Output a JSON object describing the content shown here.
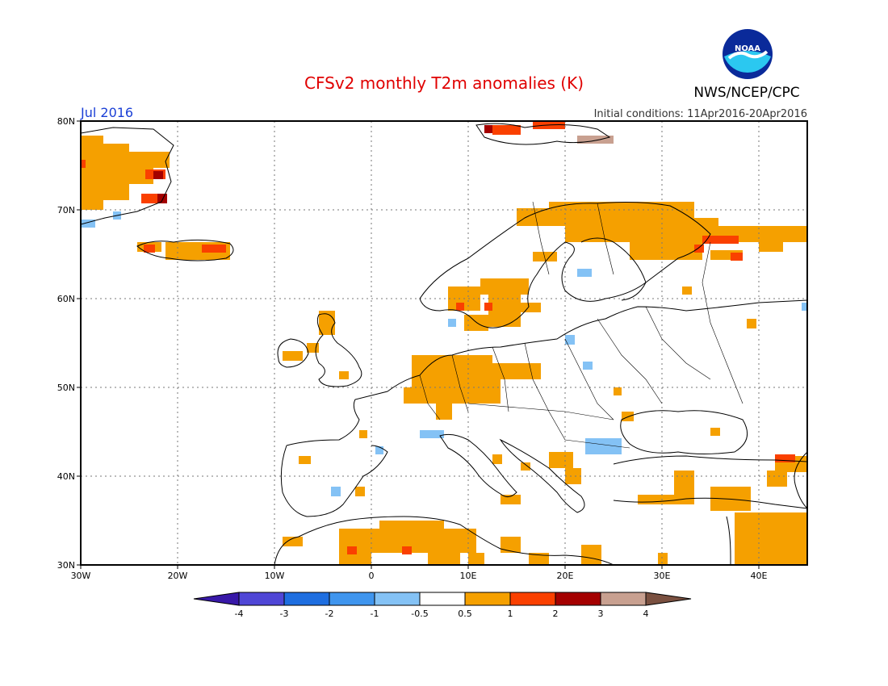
{
  "title": "CFSv2 monthly T2m anomalies (K)",
  "period": "Jul 2016",
  "initial_conditions": "Initial conditions: 11Apr2016-20Apr2016",
  "agency": "NWS/NCEP/CPC",
  "logo_text": "NOAA",
  "colors": {
    "title": "#e00000",
    "period": "#1a3fd6"
  },
  "lat_labels": [
    "80N",
    "70N",
    "60N",
    "50N",
    "40N",
    "30N"
  ],
  "lon_labels": [
    "30W",
    "20W",
    "10W",
    "0",
    "10E",
    "20E",
    "30E",
    "40E"
  ],
  "colorbar": {
    "labels": [
      "-4",
      "-3",
      "-2",
      "-1",
      "-0.5",
      "0.5",
      "1",
      "2",
      "3",
      "4"
    ],
    "colors": [
      "#3818a8",
      "#4f46d6",
      "#1e6ee0",
      "#3f95ee",
      "#84c2f5",
      "#ffffff",
      "#f5a000",
      "#fa4000",
      "#a40000",
      "#c8a090",
      "#7a5040"
    ]
  }
}
